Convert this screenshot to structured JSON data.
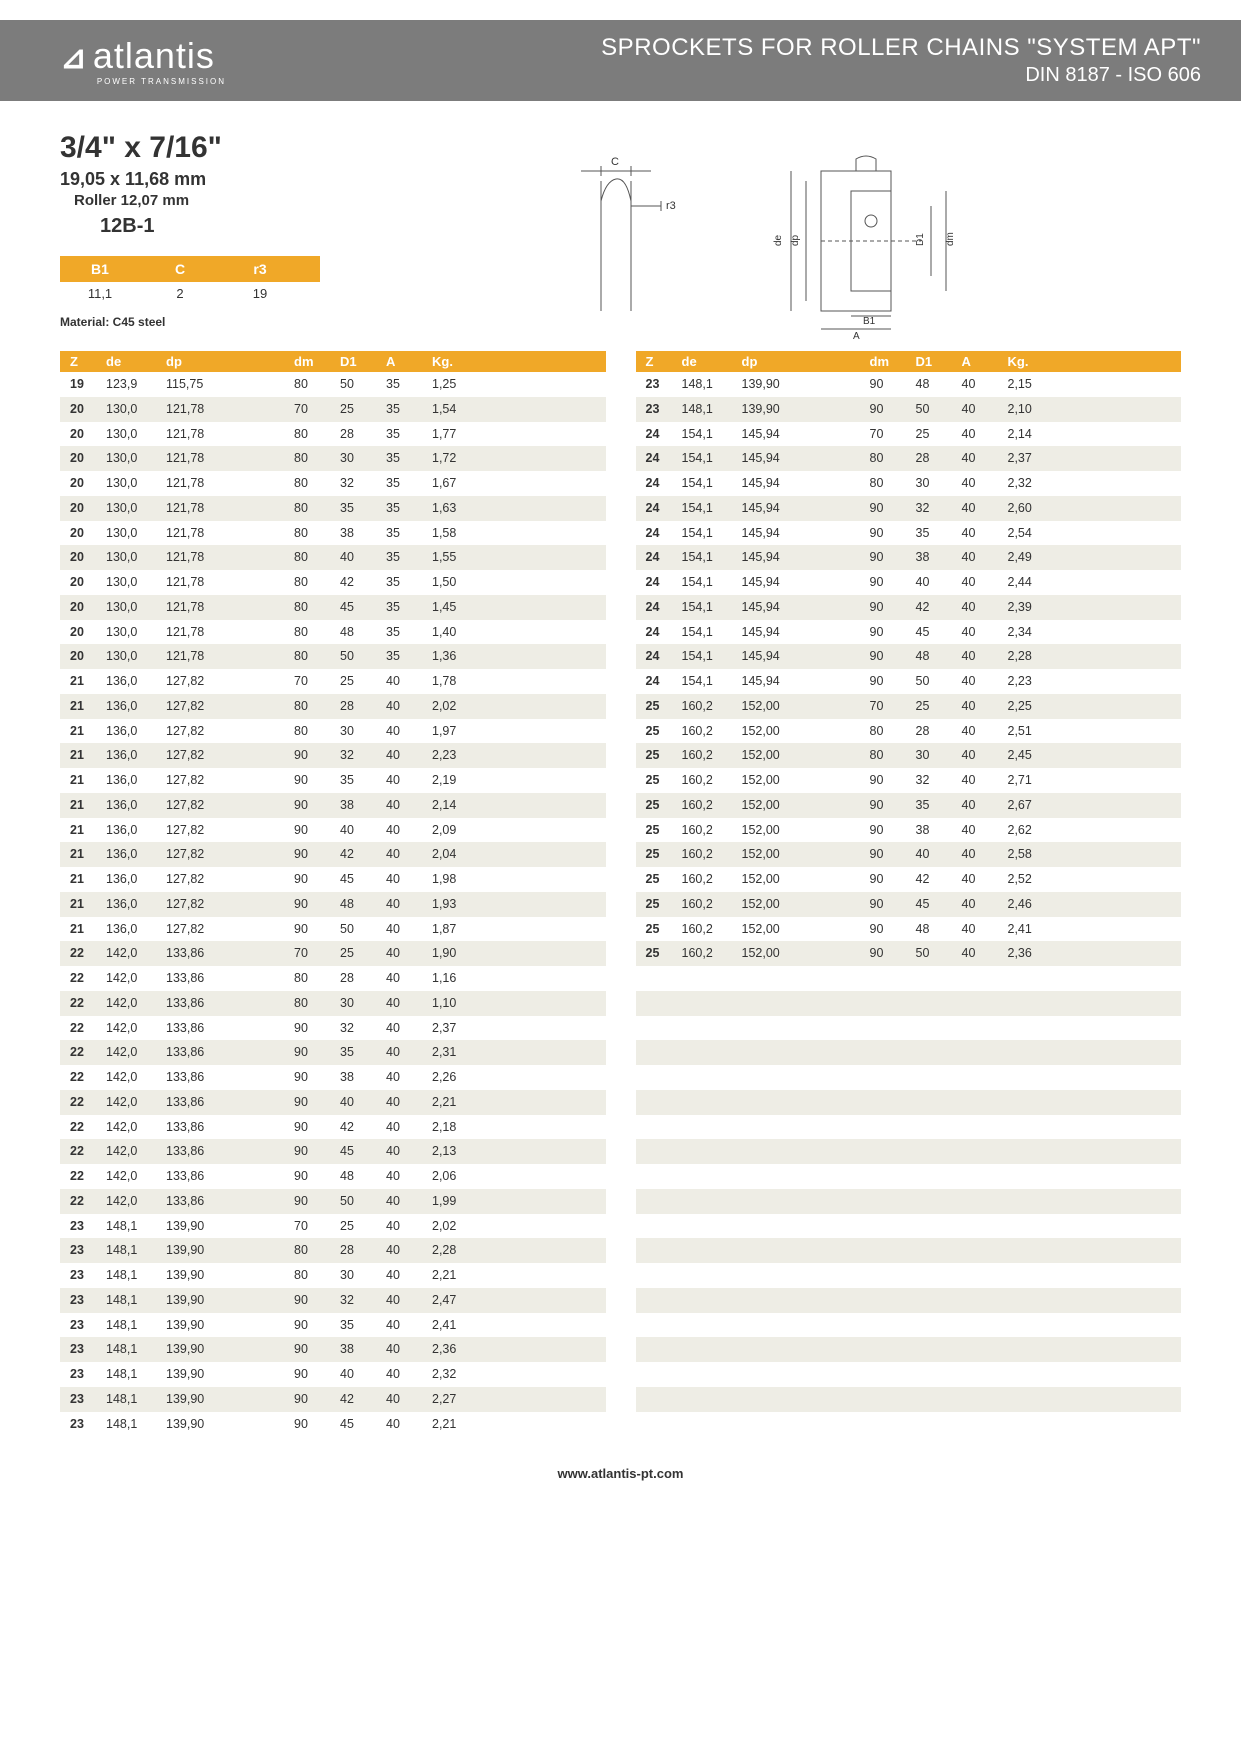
{
  "brand": {
    "name": "atlantis",
    "tagline": "POWER TRANSMISSION"
  },
  "header": {
    "title": "SPROCKETS FOR ROLLER CHAINS \"SYSTEM APT\"",
    "subtitle": "DIN 8187 - ISO 606"
  },
  "spec": {
    "size_imperial": "3/4\" x 7/16\"",
    "size_metric": "19,05 x 11,68 mm",
    "roller": "Roller 12,07 mm",
    "code": "12B-1"
  },
  "diagram_labels": {
    "left": {
      "C": "C",
      "r3": "r3"
    },
    "right": {
      "de": "de",
      "dp": "dp",
      "D1": "D1",
      "dm": "dm",
      "B1": "B1",
      "A": "A"
    }
  },
  "small_table": {
    "columns": [
      "B1",
      "C",
      "r3"
    ],
    "values": [
      "11,1",
      "2",
      "19"
    ]
  },
  "material_label": "Material: C45 steel",
  "data_columns": [
    "Z",
    "de",
    "dp",
    "dm",
    "D1",
    "A",
    "Kg."
  ],
  "left_rows": [
    [
      "19",
      "123,9",
      "115,75",
      "80",
      "50",
      "35",
      "1,25"
    ],
    [
      "20",
      "130,0",
      "121,78",
      "70",
      "25",
      "35",
      "1,54"
    ],
    [
      "20",
      "130,0",
      "121,78",
      "80",
      "28",
      "35",
      "1,77"
    ],
    [
      "20",
      "130,0",
      "121,78",
      "80",
      "30",
      "35",
      "1,72"
    ],
    [
      "20",
      "130,0",
      "121,78",
      "80",
      "32",
      "35",
      "1,67"
    ],
    [
      "20",
      "130,0",
      "121,78",
      "80",
      "35",
      "35",
      "1,63"
    ],
    [
      "20",
      "130,0",
      "121,78",
      "80",
      "38",
      "35",
      "1,58"
    ],
    [
      "20",
      "130,0",
      "121,78",
      "80",
      "40",
      "35",
      "1,55"
    ],
    [
      "20",
      "130,0",
      "121,78",
      "80",
      "42",
      "35",
      "1,50"
    ],
    [
      "20",
      "130,0",
      "121,78",
      "80",
      "45",
      "35",
      "1,45"
    ],
    [
      "20",
      "130,0",
      "121,78",
      "80",
      "48",
      "35",
      "1,40"
    ],
    [
      "20",
      "130,0",
      "121,78",
      "80",
      "50",
      "35",
      "1,36"
    ],
    [
      "21",
      "136,0",
      "127,82",
      "70",
      "25",
      "40",
      "1,78"
    ],
    [
      "21",
      "136,0",
      "127,82",
      "80",
      "28",
      "40",
      "2,02"
    ],
    [
      "21",
      "136,0",
      "127,82",
      "80",
      "30",
      "40",
      "1,97"
    ],
    [
      "21",
      "136,0",
      "127,82",
      "90",
      "32",
      "40",
      "2,23"
    ],
    [
      "21",
      "136,0",
      "127,82",
      "90",
      "35",
      "40",
      "2,19"
    ],
    [
      "21",
      "136,0",
      "127,82",
      "90",
      "38",
      "40",
      "2,14"
    ],
    [
      "21",
      "136,0",
      "127,82",
      "90",
      "40",
      "40",
      "2,09"
    ],
    [
      "21",
      "136,0",
      "127,82",
      "90",
      "42",
      "40",
      "2,04"
    ],
    [
      "21",
      "136,0",
      "127,82",
      "90",
      "45",
      "40",
      "1,98"
    ],
    [
      "21",
      "136,0",
      "127,82",
      "90",
      "48",
      "40",
      "1,93"
    ],
    [
      "21",
      "136,0",
      "127,82",
      "90",
      "50",
      "40",
      "1,87"
    ],
    [
      "22",
      "142,0",
      "133,86",
      "70",
      "25",
      "40",
      "1,90"
    ],
    [
      "22",
      "142,0",
      "133,86",
      "80",
      "28",
      "40",
      "1,16"
    ],
    [
      "22",
      "142,0",
      "133,86",
      "80",
      "30",
      "40",
      "1,10"
    ],
    [
      "22",
      "142,0",
      "133,86",
      "90",
      "32",
      "40",
      "2,37"
    ],
    [
      "22",
      "142,0",
      "133,86",
      "90",
      "35",
      "40",
      "2,31"
    ],
    [
      "22",
      "142,0",
      "133,86",
      "90",
      "38",
      "40",
      "2,26"
    ],
    [
      "22",
      "142,0",
      "133,86",
      "90",
      "40",
      "40",
      "2,21"
    ],
    [
      "22",
      "142,0",
      "133,86",
      "90",
      "42",
      "40",
      "2,18"
    ],
    [
      "22",
      "142,0",
      "133,86",
      "90",
      "45",
      "40",
      "2,13"
    ],
    [
      "22",
      "142,0",
      "133,86",
      "90",
      "48",
      "40",
      "2,06"
    ],
    [
      "22",
      "142,0",
      "133,86",
      "90",
      "50",
      "40",
      "1,99"
    ],
    [
      "23",
      "148,1",
      "139,90",
      "70",
      "25",
      "40",
      "2,02"
    ],
    [
      "23",
      "148,1",
      "139,90",
      "80",
      "28",
      "40",
      "2,28"
    ],
    [
      "23",
      "148,1",
      "139,90",
      "80",
      "30",
      "40",
      "2,21"
    ],
    [
      "23",
      "148,1",
      "139,90",
      "90",
      "32",
      "40",
      "2,47"
    ],
    [
      "23",
      "148,1",
      "139,90",
      "90",
      "35",
      "40",
      "2,41"
    ],
    [
      "23",
      "148,1",
      "139,90",
      "90",
      "38",
      "40",
      "2,36"
    ],
    [
      "23",
      "148,1",
      "139,90",
      "90",
      "40",
      "40",
      "2,32"
    ],
    [
      "23",
      "148,1",
      "139,90",
      "90",
      "42",
      "40",
      "2,27"
    ],
    [
      "23",
      "148,1",
      "139,90",
      "90",
      "45",
      "40",
      "2,21"
    ]
  ],
  "right_rows": [
    [
      "23",
      "148,1",
      "139,90",
      "90",
      "48",
      "40",
      "2,15"
    ],
    [
      "23",
      "148,1",
      "139,90",
      "90",
      "50",
      "40",
      "2,10"
    ],
    [
      "24",
      "154,1",
      "145,94",
      "70",
      "25",
      "40",
      "2,14"
    ],
    [
      "24",
      "154,1",
      "145,94",
      "80",
      "28",
      "40",
      "2,37"
    ],
    [
      "24",
      "154,1",
      "145,94",
      "80",
      "30",
      "40",
      "2,32"
    ],
    [
      "24",
      "154,1",
      "145,94",
      "90",
      "32",
      "40",
      "2,60"
    ],
    [
      "24",
      "154,1",
      "145,94",
      "90",
      "35",
      "40",
      "2,54"
    ],
    [
      "24",
      "154,1",
      "145,94",
      "90",
      "38",
      "40",
      "2,49"
    ],
    [
      "24",
      "154,1",
      "145,94",
      "90",
      "40",
      "40",
      "2,44"
    ],
    [
      "24",
      "154,1",
      "145,94",
      "90",
      "42",
      "40",
      "2,39"
    ],
    [
      "24",
      "154,1",
      "145,94",
      "90",
      "45",
      "40",
      "2,34"
    ],
    [
      "24",
      "154,1",
      "145,94",
      "90",
      "48",
      "40",
      "2,28"
    ],
    [
      "24",
      "154,1",
      "145,94",
      "90",
      "50",
      "40",
      "2,23"
    ],
    [
      "25",
      "160,2",
      "152,00",
      "70",
      "25",
      "40",
      "2,25"
    ],
    [
      "25",
      "160,2",
      "152,00",
      "80",
      "28",
      "40",
      "2,51"
    ],
    [
      "25",
      "160,2",
      "152,00",
      "80",
      "30",
      "40",
      "2,45"
    ],
    [
      "25",
      "160,2",
      "152,00",
      "90",
      "32",
      "40",
      "2,71"
    ],
    [
      "25",
      "160,2",
      "152,00",
      "90",
      "35",
      "40",
      "2,67"
    ],
    [
      "25",
      "160,2",
      "152,00",
      "90",
      "38",
      "40",
      "2,62"
    ],
    [
      "25",
      "160,2",
      "152,00",
      "90",
      "40",
      "40",
      "2,58"
    ],
    [
      "25",
      "160,2",
      "152,00",
      "90",
      "42",
      "40",
      "2,52"
    ],
    [
      "25",
      "160,2",
      "152,00",
      "90",
      "45",
      "40",
      "2,46"
    ],
    [
      "25",
      "160,2",
      "152,00",
      "90",
      "48",
      "40",
      "2,41"
    ],
    [
      "25",
      "160,2",
      "152,00",
      "90",
      "50",
      "40",
      "2,36"
    ]
  ],
  "right_padding_rows": 19,
  "footer_url": "www.atlantis-pt.com",
  "colors": {
    "header_bg": "#7c7c7c",
    "accent": "#f0a828",
    "row_alt": "#eeede5"
  }
}
